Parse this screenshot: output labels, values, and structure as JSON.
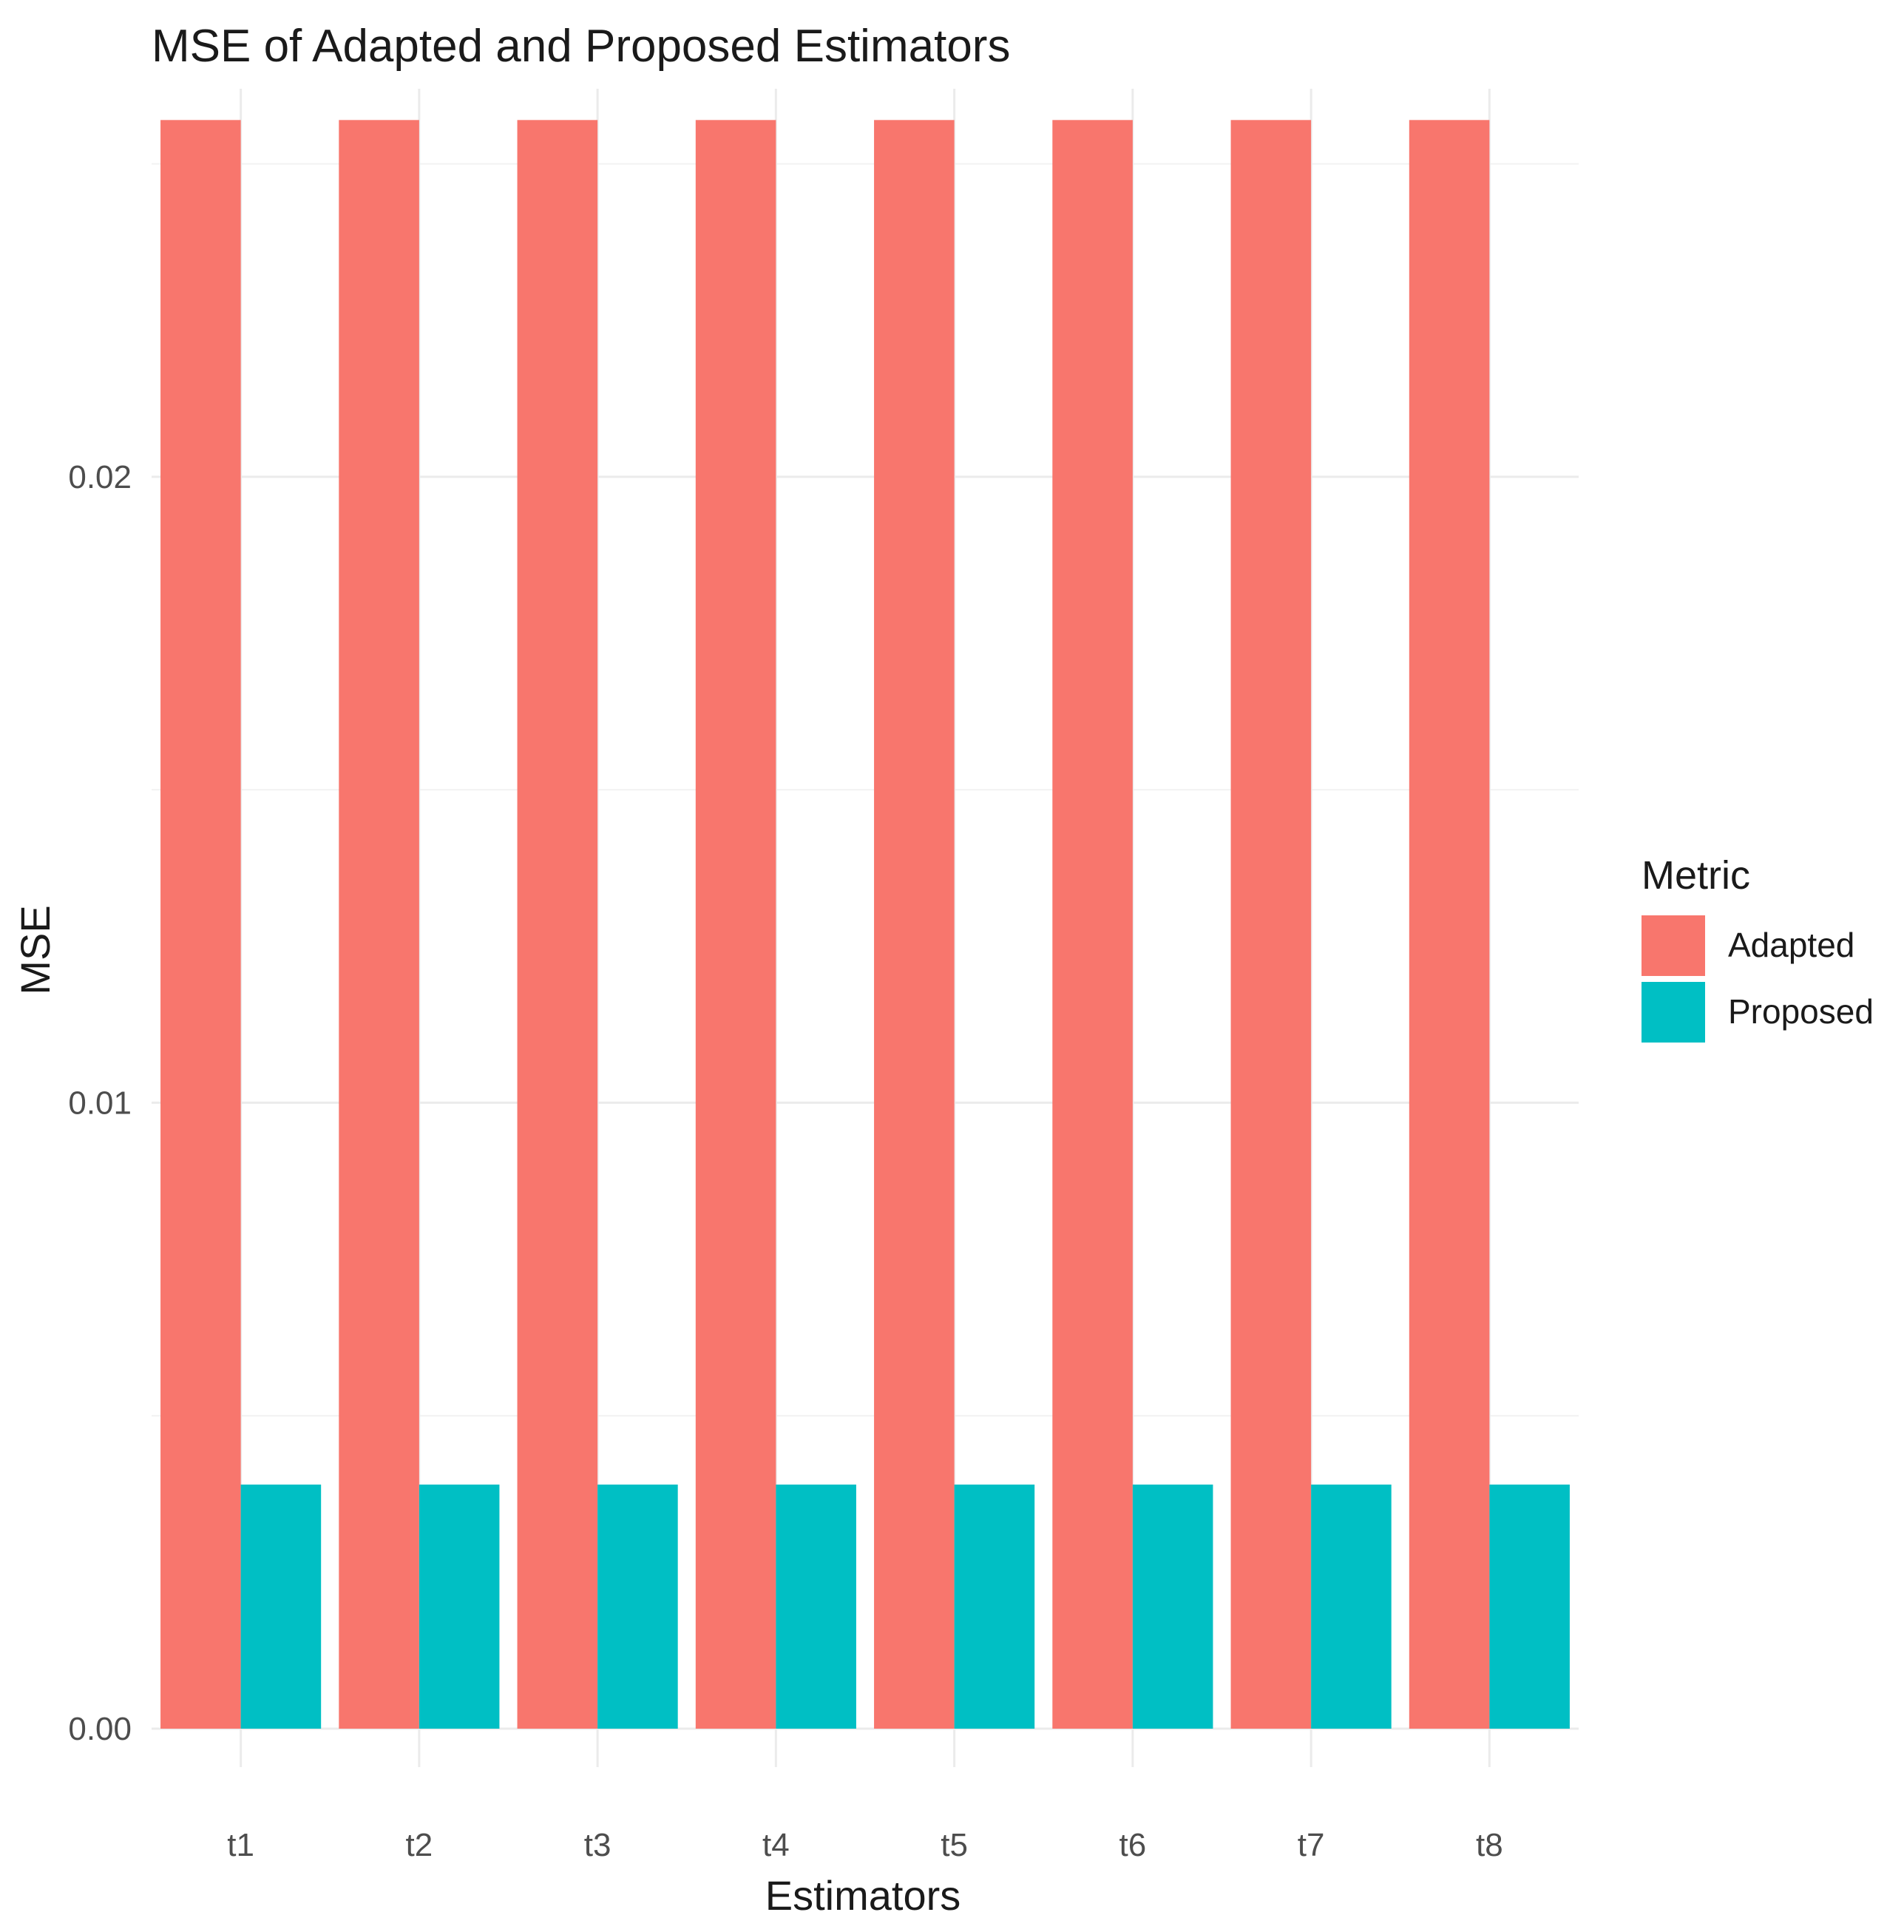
{
  "chart_data": {
    "type": "bar",
    "title": "MSE of Adapted and Proposed Estimators",
    "xlabel": "Estimators",
    "ylabel": "MSE",
    "categories": [
      "t1",
      "t2",
      "t3",
      "t4",
      "t5",
      "t6",
      "t7",
      "t8"
    ],
    "series": [
      {
        "name": "Adapted",
        "color": "#F8766D",
        "values": [
          0.0257,
          0.0257,
          0.0257,
          0.0257,
          0.0257,
          0.0257,
          0.0257,
          0.0257
        ]
      },
      {
        "name": "Proposed",
        "color": "#00BFC4",
        "values": [
          0.0039,
          0.0039,
          0.0039,
          0.0039,
          0.0039,
          0.0039,
          0.0039,
          0.0039
        ]
      }
    ],
    "ylim": [
      0,
      0.0262
    ],
    "yticks": [
      0.0,
      0.01,
      0.02
    ],
    "ytick_labels": [
      "0.00",
      "0.01",
      "0.02"
    ],
    "grid": true,
    "legend": {
      "title": "Metric",
      "position": "right"
    }
  }
}
